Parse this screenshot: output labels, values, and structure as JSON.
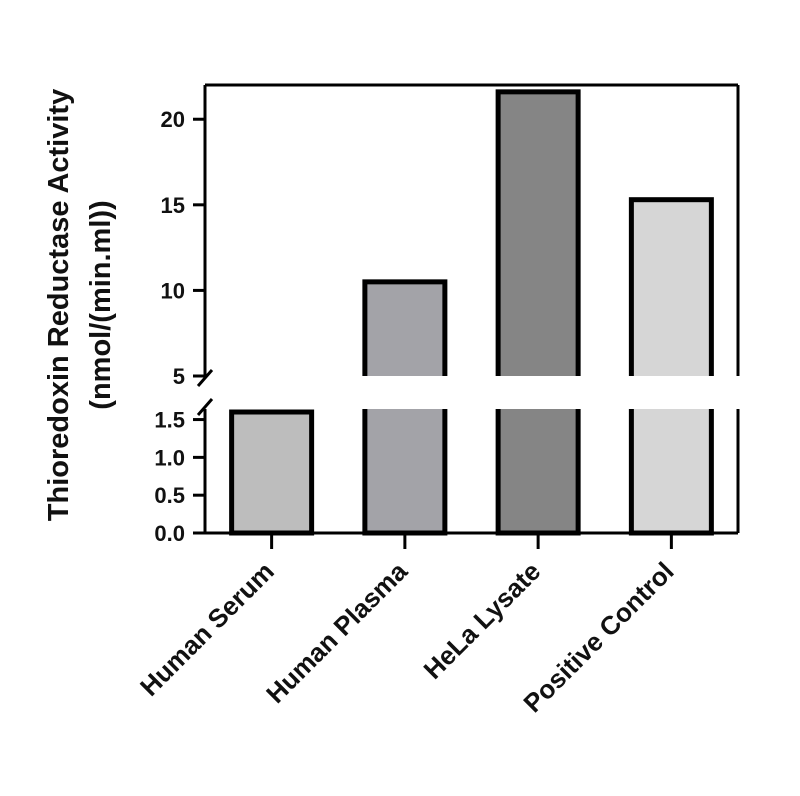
{
  "chart_data": {
    "type": "bar",
    "ylabel_line1": "Thioredoxin Reductase Activity",
    "ylabel_line2": "(nmol/(min.ml))",
    "categories": [
      "Human Serum",
      "Human Plasma",
      "HeLa Lysate",
      "Positive Control"
    ],
    "values": [
      1.6,
      10.5,
      21.6,
      15.3
    ],
    "colors": [
      "#bdbdbd",
      "#a3a3a8",
      "#858585",
      "#d6d6d6"
    ],
    "y_axis": {
      "type": "broken",
      "lower_segment": {
        "range": [
          0,
          1.6
        ],
        "ticks": [
          0.0,
          0.5,
          1.0,
          1.5
        ],
        "tick_labels": [
          "0.0",
          "0.5",
          "1.0",
          "1.5"
        ]
      },
      "upper_segment": {
        "range": [
          5,
          22
        ],
        "ticks": [
          5,
          10,
          15,
          20
        ],
        "tick_labels": [
          "5",
          "10",
          "15",
          "20"
        ]
      }
    },
    "grid": false,
    "legend": "none"
  }
}
